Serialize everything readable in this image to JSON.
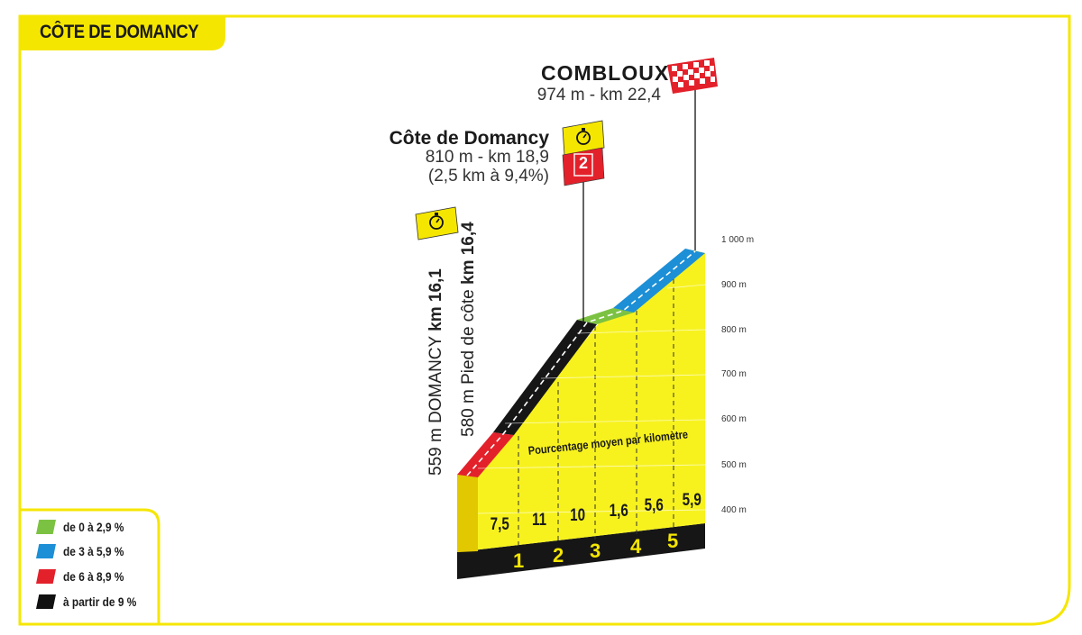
{
  "title": "CÔTE DE DOMANCY",
  "summits": {
    "finish": {
      "name": "COMBLOUX",
      "detail": "974 m - km 22,4"
    },
    "climb": {
      "name": "Côte de Domancy",
      "detail": "810 m - km 18,9",
      "note": "(2,5 km à 9,4%)",
      "category": "2"
    }
  },
  "waypoints": {
    "town": {
      "altitude": "559 m DOMANCY",
      "km": "km 16,1"
    },
    "foot": {
      "altitude": "580 m Pied de côte",
      "km": "km 16,4"
    }
  },
  "y_axis": [
    "1 000 m",
    "900 m",
    "800 m",
    "700 m",
    "600 m",
    "500 m",
    "400 m"
  ],
  "gradient_title": "Pourcentage moyen par kilomètre",
  "gradients": [
    "7,5",
    "11",
    "10",
    "1,6",
    "5,6",
    "5,9"
  ],
  "km_markers": [
    "1",
    "2",
    "3",
    "4",
    "5"
  ],
  "legend": [
    {
      "label": "de 0 à 2,9 %",
      "color": "#7cc242"
    },
    {
      "label": "de 3 à 5,9 %",
      "color": "#1c8fd6"
    },
    {
      "label": "de 6 à 8,9 %",
      "color": "#e3212b"
    },
    {
      "label": "à partir de 9 %",
      "color": "#111111"
    }
  ],
  "colors": {
    "accent": "#f5e600",
    "profile": "#f7f21e"
  }
}
